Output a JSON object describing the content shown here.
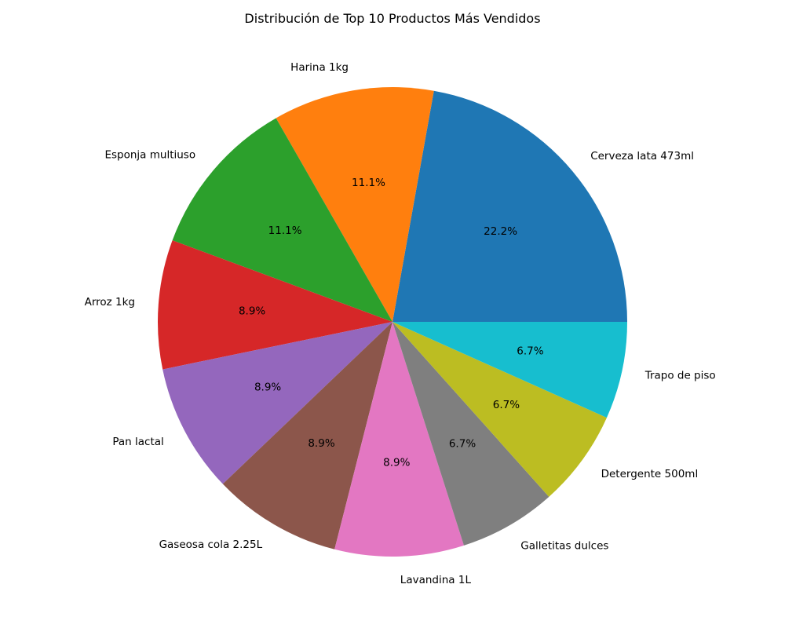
{
  "chart_data": {
    "type": "pie",
    "title": "Distribución de Top 10 Productos Más Vendidos",
    "start_angle_deg": 0,
    "direction": "counterclockwise",
    "slices": [
      {
        "label": "Cerveza lata 473ml",
        "value": 22.2,
        "pct_label": "22.2%",
        "color": "#1f77b4"
      },
      {
        "label": "Harina 1kg",
        "value": 11.1,
        "pct_label": "11.1%",
        "color": "#ff7f0e"
      },
      {
        "label": "Esponja multiuso",
        "value": 11.1,
        "pct_label": "11.1%",
        "color": "#2ca02c"
      },
      {
        "label": "Arroz 1kg",
        "value": 8.9,
        "pct_label": "8.9%",
        "color": "#d62728"
      },
      {
        "label": "Pan lactal",
        "value": 8.9,
        "pct_label": "8.9%",
        "color": "#9467bd"
      },
      {
        "label": "Gaseosa cola 2.25L",
        "value": 8.9,
        "pct_label": "8.9%",
        "color": "#8c564b"
      },
      {
        "label": "Lavandina 1L",
        "value": 8.9,
        "pct_label": "8.9%",
        "color": "#e377c2"
      },
      {
        "label": "Galletitas dulces",
        "value": 6.7,
        "pct_label": "6.7%",
        "color": "#7f7f7f"
      },
      {
        "label": "Detergente 500ml",
        "value": 6.7,
        "pct_label": "6.7%",
        "color": "#bcbd22"
      },
      {
        "label": "Trapo de piso",
        "value": 6.7,
        "pct_label": "6.7%",
        "color": "#17becf"
      }
    ]
  }
}
